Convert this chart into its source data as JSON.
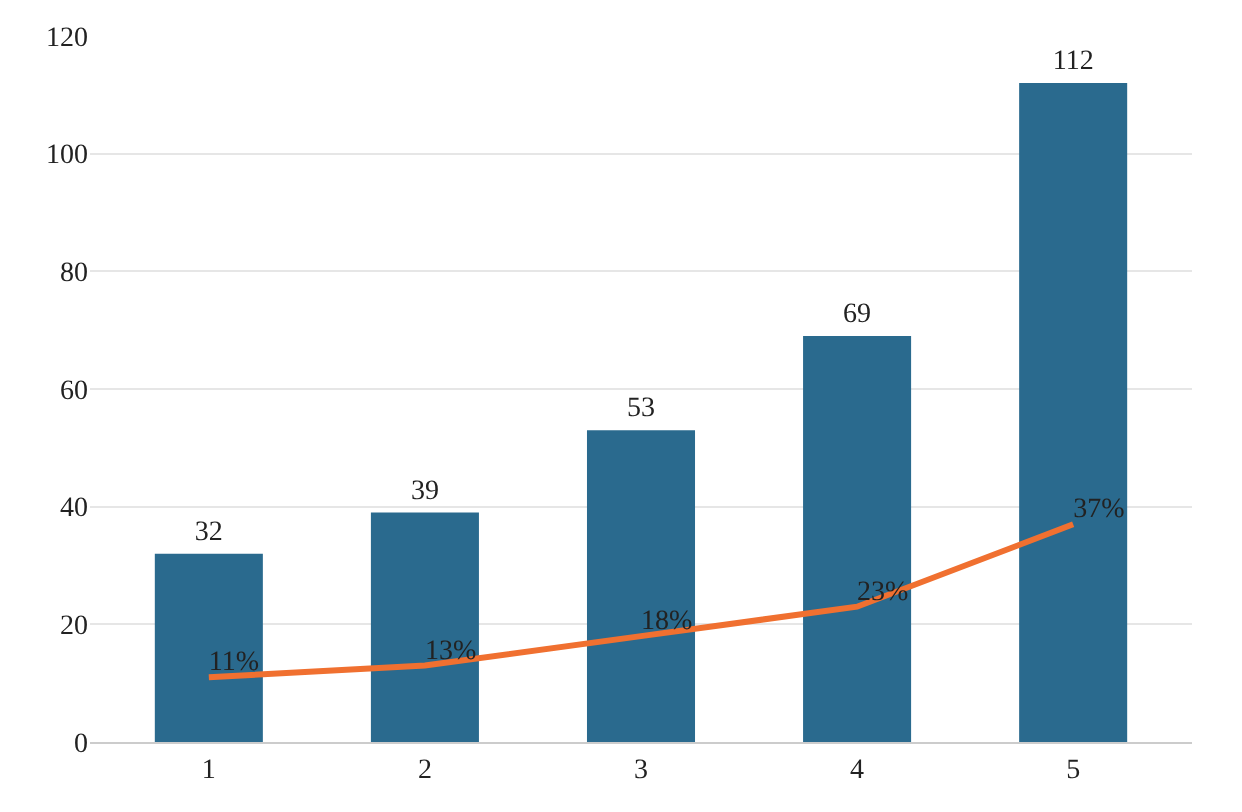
{
  "chart_data": {
    "type": "bar",
    "categories": [
      "1",
      "2",
      "3",
      "4",
      "5"
    ],
    "ylim": [
      0,
      120
    ],
    "yticks": [
      0,
      20,
      40,
      60,
      80,
      100,
      120
    ],
    "grid": "y",
    "legend": false,
    "series": [
      {
        "color": "#2a6a8e",
        "values": [
          32,
          39,
          53,
          69,
          112
        ],
        "value_labels": [
          "32",
          "39",
          "53",
          "69",
          "112"
        ]
      },
      {
        "type": "line",
        "color": "#f07030",
        "marker": "none",
        "line_style": "solid",
        "values": [
          11,
          13,
          18,
          23,
          37
        ],
        "value_labels": [
          "11%",
          "13%",
          "18%",
          "23%",
          "37%"
        ]
      }
    ]
  }
}
